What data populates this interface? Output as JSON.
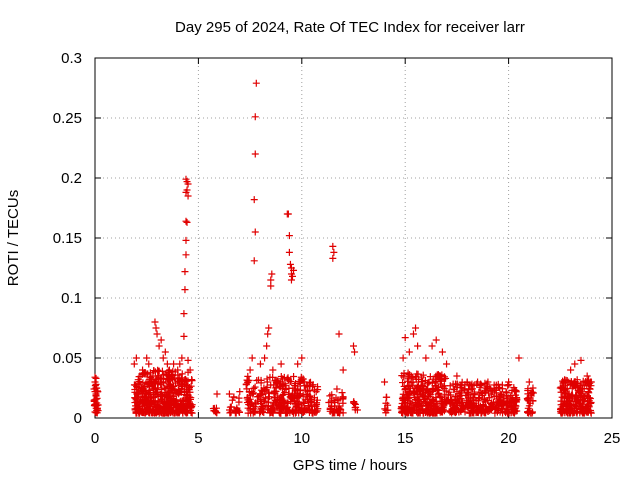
{
  "chart_data": {
    "type": "scatter",
    "title": "Day 295 of 2024, Rate Of TEC Index for receiver larr",
    "xlabel": "GPS time / hours",
    "ylabel": "ROTI / TECUs",
    "xlim": [
      0,
      25
    ],
    "ylim": [
      0,
      0.3
    ],
    "grid": true,
    "x_ticks": [
      0,
      5,
      10,
      15,
      20,
      25
    ],
    "x_tick_labels": [
      "0",
      "5",
      "10",
      "15",
      "20",
      "25"
    ],
    "y_ticks": [
      0,
      0.05,
      0.1,
      0.15,
      0.2,
      0.25,
      0.3
    ],
    "y_tick_labels": [
      "0",
      "0.05",
      "0.1",
      "0.15",
      "0.2",
      "0.25",
      "0.3"
    ],
    "marker": "+",
    "marker_color": "#e00000",
    "series": [
      {
        "name": "ROTI",
        "points": [
          [
            0.0,
            0.034
          ],
          [
            0.0,
            0.03
          ],
          [
            0.05,
            0.025
          ],
          [
            0.05,
            0.02
          ],
          [
            0.0,
            0.015
          ],
          [
            0.05,
            0.01
          ],
          [
            0.0,
            0.005
          ],
          [
            0.05,
            0.028
          ],
          [
            0.0,
            0.022
          ],
          [
            0.05,
            0.033
          ],
          [
            1.9,
            0.045
          ],
          [
            2.0,
            0.05
          ],
          [
            2.1,
            0.03
          ],
          [
            2.3,
            0.04
          ],
          [
            2.5,
            0.05
          ],
          [
            2.6,
            0.045
          ],
          [
            2.8,
            0.035
          ],
          [
            2.9,
            0.08
          ],
          [
            2.95,
            0.075
          ],
          [
            3.0,
            0.07
          ],
          [
            3.1,
            0.06
          ],
          [
            3.2,
            0.065
          ],
          [
            3.3,
            0.05
          ],
          [
            3.4,
            0.055
          ],
          [
            3.5,
            0.045
          ],
          [
            3.6,
            0.04
          ],
          [
            3.8,
            0.045
          ],
          [
            4.0,
            0.04
          ],
          [
            4.1,
            0.045
          ],
          [
            4.2,
            0.05
          ],
          [
            4.3,
            0.068
          ],
          [
            4.3,
            0.087
          ],
          [
            4.35,
            0.107
          ],
          [
            4.35,
            0.122
          ],
          [
            4.4,
            0.136
          ],
          [
            4.4,
            0.148
          ],
          [
            4.4,
            0.164
          ],
          [
            4.45,
            0.163
          ],
          [
            4.4,
            0.188
          ],
          [
            4.45,
            0.19
          ],
          [
            4.5,
            0.195
          ],
          [
            4.4,
            0.199
          ],
          [
            4.45,
            0.197
          ],
          [
            4.5,
            0.185
          ],
          [
            4.5,
            0.048
          ],
          [
            4.6,
            0.04
          ],
          [
            5.9,
            0.02
          ],
          [
            6.5,
            0.02
          ],
          [
            7.0,
            0.022
          ],
          [
            7.5,
            0.04
          ],
          [
            7.6,
            0.05
          ],
          [
            7.7,
            0.131
          ],
          [
            7.75,
            0.155
          ],
          [
            7.7,
            0.182
          ],
          [
            7.75,
            0.22
          ],
          [
            7.75,
            0.251
          ],
          [
            7.8,
            0.279
          ],
          [
            8.0,
            0.045
          ],
          [
            8.2,
            0.05
          ],
          [
            8.3,
            0.06
          ],
          [
            8.35,
            0.07
          ],
          [
            8.4,
            0.075
          ],
          [
            8.5,
            0.11
          ],
          [
            8.5,
            0.115
          ],
          [
            8.55,
            0.12
          ],
          [
            8.6,
            0.04
          ],
          [
            9.0,
            0.045
          ],
          [
            9.3,
            0.17
          ],
          [
            9.35,
            0.17
          ],
          [
            9.4,
            0.152
          ],
          [
            9.4,
            0.138
          ],
          [
            9.45,
            0.128
          ],
          [
            9.5,
            0.125
          ],
          [
            9.5,
            0.12
          ],
          [
            9.55,
            0.118
          ],
          [
            9.5,
            0.115
          ],
          [
            9.6,
            0.123
          ],
          [
            9.8,
            0.045
          ],
          [
            10.0,
            0.05
          ],
          [
            11.5,
            0.143
          ],
          [
            11.55,
            0.138
          ],
          [
            11.5,
            0.133
          ],
          [
            11.8,
            0.07
          ],
          [
            12.0,
            0.04
          ],
          [
            12.5,
            0.06
          ],
          [
            12.55,
            0.055
          ],
          [
            14.0,
            0.03
          ],
          [
            14.9,
            0.05
          ],
          [
            15.0,
            0.067
          ],
          [
            15.2,
            0.055
          ],
          [
            15.4,
            0.07
          ],
          [
            15.5,
            0.075
          ],
          [
            15.6,
            0.06
          ],
          [
            16.0,
            0.05
          ],
          [
            16.3,
            0.06
          ],
          [
            16.5,
            0.065
          ],
          [
            16.8,
            0.055
          ],
          [
            17.0,
            0.045
          ],
          [
            17.5,
            0.035
          ],
          [
            18.0,
            0.03
          ],
          [
            18.5,
            0.03
          ],
          [
            19.0,
            0.03
          ],
          [
            19.5,
            0.028
          ],
          [
            20.0,
            0.03
          ],
          [
            20.5,
            0.05
          ],
          [
            21.0,
            0.03
          ],
          [
            22.5,
            0.025
          ],
          [
            23.0,
            0.04
          ],
          [
            23.2,
            0.045
          ],
          [
            23.5,
            0.048
          ],
          [
            23.8,
            0.035
          ],
          [
            24.0,
            0.03
          ]
        ],
        "bands": [
          {
            "x_range": [
              -0.05,
              0.15
            ],
            "y_max": 0.028,
            "count": 30
          },
          {
            "x_range": [
              1.9,
              2.5
            ],
            "y_max": 0.038,
            "count": 110
          },
          {
            "x_range": [
              2.5,
              3.2
            ],
            "y_max": 0.04,
            "count": 130
          },
          {
            "x_range": [
              3.2,
              4.7
            ],
            "y_max": 0.04,
            "count": 260
          },
          {
            "x_range": [
              5.7,
              6.0
            ],
            "y_max": 0.01,
            "count": 10
          },
          {
            "x_range": [
              6.5,
              7.0
            ],
            "y_max": 0.018,
            "count": 20
          },
          {
            "x_range": [
              7.3,
              8.8
            ],
            "y_max": 0.035,
            "count": 120
          },
          {
            "x_range": [
              8.8,
              10.2
            ],
            "y_max": 0.035,
            "count": 150
          },
          {
            "x_range": [
              10.2,
              10.8
            ],
            "y_max": 0.03,
            "count": 50
          },
          {
            "x_range": [
              11.3,
              12.0
            ],
            "y_max": 0.025,
            "count": 40
          },
          {
            "x_range": [
              12.5,
              12.7
            ],
            "y_max": 0.015,
            "count": 8
          },
          {
            "x_range": [
              14.0,
              14.2
            ],
            "y_max": 0.018,
            "count": 8
          },
          {
            "x_range": [
              14.8,
              17.0
            ],
            "y_max": 0.038,
            "count": 300
          },
          {
            "x_range": [
              17.0,
              19.0
            ],
            "y_max": 0.03,
            "count": 200
          },
          {
            "x_range": [
              19.0,
              20.4
            ],
            "y_max": 0.028,
            "count": 130
          },
          {
            "x_range": [
              20.9,
              21.2
            ],
            "y_max": 0.025,
            "count": 30
          },
          {
            "x_range": [
              22.5,
              24.0
            ],
            "y_max": 0.032,
            "count": 220
          }
        ]
      }
    ]
  }
}
